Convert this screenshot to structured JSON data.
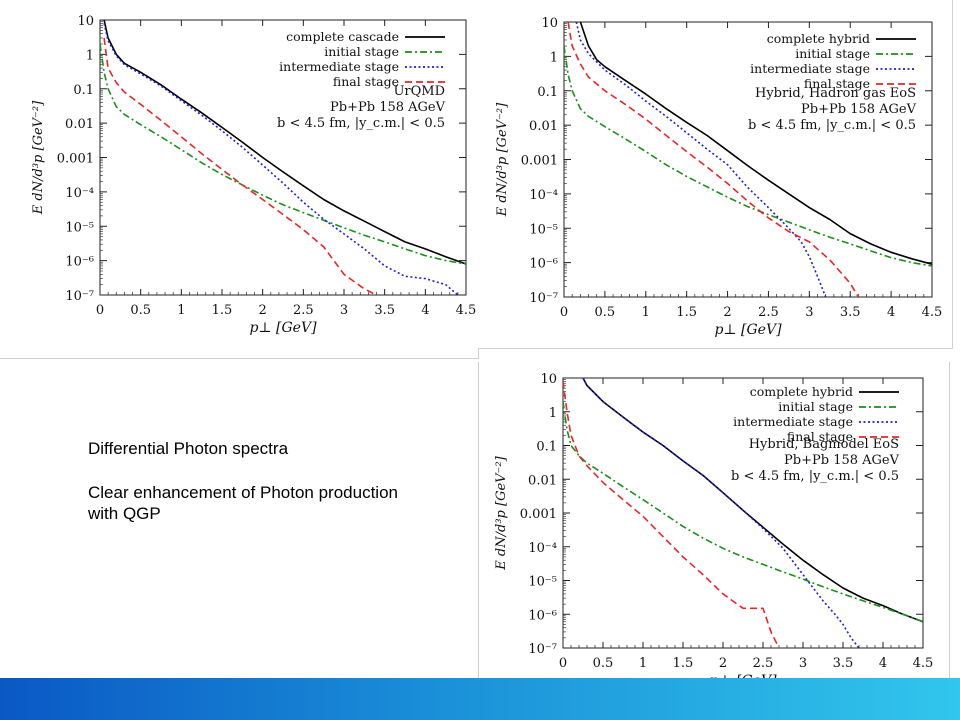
{
  "caption": {
    "title": "Differential Photon spectra",
    "body": "Clear enhancement of Photon production with QGP"
  },
  "colors": {
    "complete": "#000000",
    "initial": "#1a8f1a",
    "intermediate": "#1f1fd6",
    "final": "#e8262a",
    "bar_left": "#0a58c4",
    "bar_right": "#31c6ec"
  },
  "chart_data": [
    {
      "type": "line",
      "xlabel": "p⊥ [GeV]",
      "ylabel": "E dN/d³p [GeV⁻²]",
      "xlim": [
        0,
        4.5
      ],
      "ylim": [
        1e-07,
        10
      ],
      "yscale": "log",
      "x_ticks": [
        "0",
        "0.5",
        "1",
        "1.5",
        "2",
        "2.5",
        "3",
        "3.5",
        "4",
        "4.5"
      ],
      "y_ticks": [
        "10",
        "1",
        "0.1",
        "0.01",
        "0.001",
        "10⁻⁴",
        "10⁻⁵",
        "10⁻⁶",
        "10⁻⁷"
      ],
      "legend_position": "top-right",
      "annotations": [
        "UrQMD",
        "Pb+Pb 158 AGeV",
        "b < 4.5 fm, |y_c.m.| < 0.5"
      ],
      "series": [
        {
          "name": "complete cascade",
          "style": "solid",
          "color": "#000000",
          "x": [
            0.05,
            0.1,
            0.2,
            0.3,
            0.5,
            0.75,
            1.0,
            1.25,
            1.5,
            1.75,
            2.0,
            2.25,
            2.5,
            2.75,
            3.0,
            3.25,
            3.5,
            3.75,
            4.0,
            4.25,
            4.5
          ],
          "y": [
            10,
            3,
            1,
            0.55,
            0.3,
            0.13,
            0.05,
            0.02,
            0.0075,
            0.0028,
            0.001,
            0.00038,
            0.00015,
            6e-05,
            2.8e-05,
            1.4e-05,
            7e-06,
            3.5e-06,
            2.2e-06,
            1.3e-06,
            8e-07
          ]
        },
        {
          "name": "initial stage",
          "style": "dashdot",
          "color": "#1a8f1a",
          "x": [
            0.0,
            0.05,
            0.1,
            0.2,
            0.3,
            0.5,
            0.75,
            1.0,
            1.25,
            1.5,
            1.75,
            2.0,
            2.25,
            2.5,
            2.75,
            3.0,
            3.25,
            3.5,
            3.75,
            4.0,
            4.25,
            4.5
          ],
          "y": [
            2,
            0.3,
            0.1,
            0.03,
            0.018,
            0.009,
            0.004,
            0.0017,
            0.0007,
            0.00032,
            0.00016,
            8e-05,
            4.2e-05,
            2.5e-05,
            1.5e-05,
            9e-06,
            5.5e-06,
            3.5e-06,
            2.2e-06,
            1.4e-06,
            1e-06,
            8e-07
          ]
        },
        {
          "name": "intermediate stage",
          "style": "dotted",
          "color": "#1f1fd6",
          "x": [
            0.05,
            0.1,
            0.2,
            0.3,
            0.5,
            0.75,
            1.0,
            1.25,
            1.5,
            1.75,
            2.0,
            2.25,
            2.5,
            2.75,
            3.0,
            3.25,
            3.5,
            3.75,
            4.0,
            4.25,
            4.4
          ],
          "y": [
            8,
            2.5,
            0.9,
            0.5,
            0.27,
            0.12,
            0.045,
            0.017,
            0.006,
            0.002,
            0.0006,
            0.00018,
            5e-05,
            1.6e-05,
            6e-06,
            2.2e-06,
            7e-07,
            3.5e-07,
            3e-07,
            2e-07,
            1e-07
          ]
        },
        {
          "name": "final stage",
          "style": "dashed",
          "color": "#e8262a",
          "x": [
            0.05,
            0.1,
            0.2,
            0.3,
            0.5,
            0.75,
            1.0,
            1.25,
            1.5,
            1.75,
            2.0,
            2.25,
            2.5,
            2.75,
            3.0,
            3.25,
            3.4
          ],
          "y": [
            3,
            0.4,
            0.15,
            0.08,
            0.035,
            0.012,
            0.004,
            0.0013,
            0.00045,
            0.00016,
            6e-05,
            2.2e-05,
            8e-06,
            2.5e-06,
            4e-07,
            1.5e-07,
            1e-07
          ]
        }
      ]
    },
    {
      "type": "line",
      "xlabel": "p⊥ [GeV]",
      "ylabel": "E dN/d³p [GeV⁻²]",
      "xlim": [
        0,
        4.5
      ],
      "ylim": [
        1e-07,
        10
      ],
      "yscale": "log",
      "x_ticks": [
        "0",
        "0.5",
        "1",
        "1.5",
        "2",
        "2.5",
        "3",
        "3.5",
        "4",
        "4.5"
      ],
      "y_ticks": [
        "10",
        "1",
        "0.1",
        "0.01",
        "0.001",
        "10⁻⁴",
        "10⁻⁵",
        "10⁻⁶",
        "10⁻⁷"
      ],
      "legend_position": "top-right",
      "annotations": [
        "Hybrid, Hadron gas EoS",
        "Pb+Pb 158 AGeV",
        "b < 4.5 fm, |y_c.m.| < 0.5"
      ],
      "series": [
        {
          "name": "complete hybrid",
          "style": "solid",
          "color": "#000000",
          "x": [
            0.2,
            0.3,
            0.4,
            0.5,
            0.75,
            1.0,
            1.25,
            1.5,
            1.75,
            2.0,
            2.25,
            2.5,
            2.75,
            3.0,
            3.25,
            3.5,
            3.75,
            4.0,
            4.25,
            4.5
          ],
          "y": [
            10,
            2,
            0.8,
            0.5,
            0.2,
            0.08,
            0.03,
            0.012,
            0.005,
            0.0018,
            0.00065,
            0.00025,
            0.0001,
            4e-05,
            1.8e-05,
            7e-06,
            3.5e-06,
            2e-06,
            1.3e-06,
            9e-07
          ]
        },
        {
          "name": "initial stage",
          "style": "dashdot",
          "color": "#1a8f1a",
          "x": [
            0.0,
            0.05,
            0.1,
            0.2,
            0.3,
            0.5,
            0.75,
            1.0,
            1.25,
            1.5,
            1.75,
            2.0,
            2.25,
            2.5,
            2.75,
            3.0,
            3.25,
            3.5,
            3.75,
            4.0,
            4.25,
            4.5
          ],
          "y": [
            2,
            0.3,
            0.1,
            0.03,
            0.018,
            0.009,
            0.004,
            0.0017,
            0.0007,
            0.00032,
            0.00016,
            8e-05,
            4.2e-05,
            2.5e-05,
            1.5e-05,
            9e-06,
            5.5e-06,
            3.5e-06,
            2.2e-06,
            1.4e-06,
            1e-06,
            8e-07
          ]
        },
        {
          "name": "intermediate stage",
          "style": "dotted",
          "color": "#1f1fd6",
          "x": [
            0.15,
            0.2,
            0.3,
            0.5,
            0.75,
            1.0,
            1.25,
            1.5,
            1.75,
            2.0,
            2.25,
            2.5,
            2.75,
            2.9,
            3.0,
            3.1,
            3.2
          ],
          "y": [
            10,
            3,
            1.2,
            0.4,
            0.15,
            0.05,
            0.018,
            0.006,
            0.002,
            0.0007,
            0.00015,
            4e-05,
            1e-05,
            4e-06,
            1.5e-06,
            4e-07,
            1e-07
          ]
        },
        {
          "name": "final stage",
          "style": "dashed",
          "color": "#e8262a",
          "x": [
            0.05,
            0.1,
            0.2,
            0.3,
            0.5,
            0.75,
            1.0,
            1.25,
            1.5,
            1.75,
            2.0,
            2.25,
            2.5,
            2.75,
            3.0,
            3.25,
            3.5,
            3.6
          ],
          "y": [
            10,
            2,
            0.6,
            0.25,
            0.1,
            0.04,
            0.015,
            0.005,
            0.0017,
            0.0006,
            0.0002,
            6e-05,
            2e-05,
            8e-06,
            4e-06,
            1.2e-06,
            2.5e-07,
            1e-07
          ]
        }
      ]
    },
    {
      "type": "line",
      "xlabel": "p⊥ [GeV]",
      "ylabel": "E dN/d³p [GeV⁻²]",
      "xlim": [
        0,
        4.5
      ],
      "ylim": [
        1e-07,
        10
      ],
      "yscale": "log",
      "x_ticks": [
        "0",
        "0.5",
        "1",
        "1.5",
        "2",
        "2.5",
        "3",
        "3.5",
        "4",
        "4.5"
      ],
      "y_ticks": [
        "10",
        "1",
        "0.1",
        "0.01",
        "0.001",
        "10⁻⁴",
        "10⁻⁵",
        "10⁻⁶",
        "10⁻⁷"
      ],
      "legend_position": "top-right",
      "annotations": [
        "Hybrid, Bagmodel EoS",
        "Pb+Pb 158 AGeV",
        "b < 4.5 fm, |y_c.m.| < 0.5"
      ],
      "series": [
        {
          "name": "complete hybrid",
          "style": "solid",
          "color": "#000000",
          "x": [
            0.25,
            0.3,
            0.5,
            0.75,
            1.0,
            1.25,
            1.5,
            1.75,
            2.0,
            2.25,
            2.5,
            2.75,
            3.0,
            3.25,
            3.5,
            3.75,
            4.0,
            4.25,
            4.5
          ],
          "y": [
            10,
            6,
            2,
            0.7,
            0.25,
            0.1,
            0.035,
            0.013,
            0.004,
            0.0012,
            0.00038,
            0.00012,
            4e-05,
            1.5e-05,
            6e-06,
            3e-06,
            1.8e-06,
            1e-06,
            6e-07
          ]
        },
        {
          "name": "initial stage",
          "style": "dashdot",
          "color": "#1a8f1a",
          "x": [
            0.0,
            0.05,
            0.1,
            0.2,
            0.3,
            0.5,
            0.75,
            1.0,
            1.25,
            1.5,
            1.75,
            2.0,
            2.25,
            2.5,
            2.75,
            3.0,
            3.25,
            3.5,
            3.75,
            4.0,
            4.25,
            4.5
          ],
          "y": [
            2,
            0.3,
            0.1,
            0.05,
            0.03,
            0.015,
            0.006,
            0.0025,
            0.001,
            0.0004,
            0.00018,
            9e-05,
            5e-05,
            3e-05,
            1.8e-05,
            1.1e-05,
            6.5e-06,
            4e-06,
            2.5e-06,
            1.6e-06,
            1e-06,
            6e-07
          ]
        },
        {
          "name": "intermediate stage",
          "style": "dotted",
          "color": "#1f1fd6",
          "x": [
            0.25,
            0.3,
            0.5,
            0.75,
            1.0,
            1.25,
            1.5,
            1.75,
            2.0,
            2.25,
            2.5,
            2.75,
            3.0,
            3.25,
            3.4,
            3.5,
            3.6,
            3.7
          ],
          "y": [
            10,
            6,
            2,
            0.7,
            0.25,
            0.1,
            0.035,
            0.013,
            0.004,
            0.0012,
            0.00035,
            9e-05,
            1.5e-05,
            2.5e-06,
            1e-06,
            5e-07,
            2e-07,
            1e-07
          ]
        },
        {
          "name": "final stage",
          "style": "dashed",
          "color": "#e8262a",
          "x": [
            0.0,
            0.05,
            0.1,
            0.2,
            0.3,
            0.5,
            0.75,
            1.0,
            1.25,
            1.5,
            1.75,
            2.0,
            2.25,
            2.5,
            2.6,
            2.7
          ],
          "y": [
            8,
            1,
            0.2,
            0.05,
            0.025,
            0.008,
            0.0025,
            0.0008,
            0.0002,
            5e-05,
            1.5e-05,
            4e-06,
            1.5e-06,
            1.5e-06,
            3e-07,
            1e-07
          ]
        }
      ]
    }
  ]
}
